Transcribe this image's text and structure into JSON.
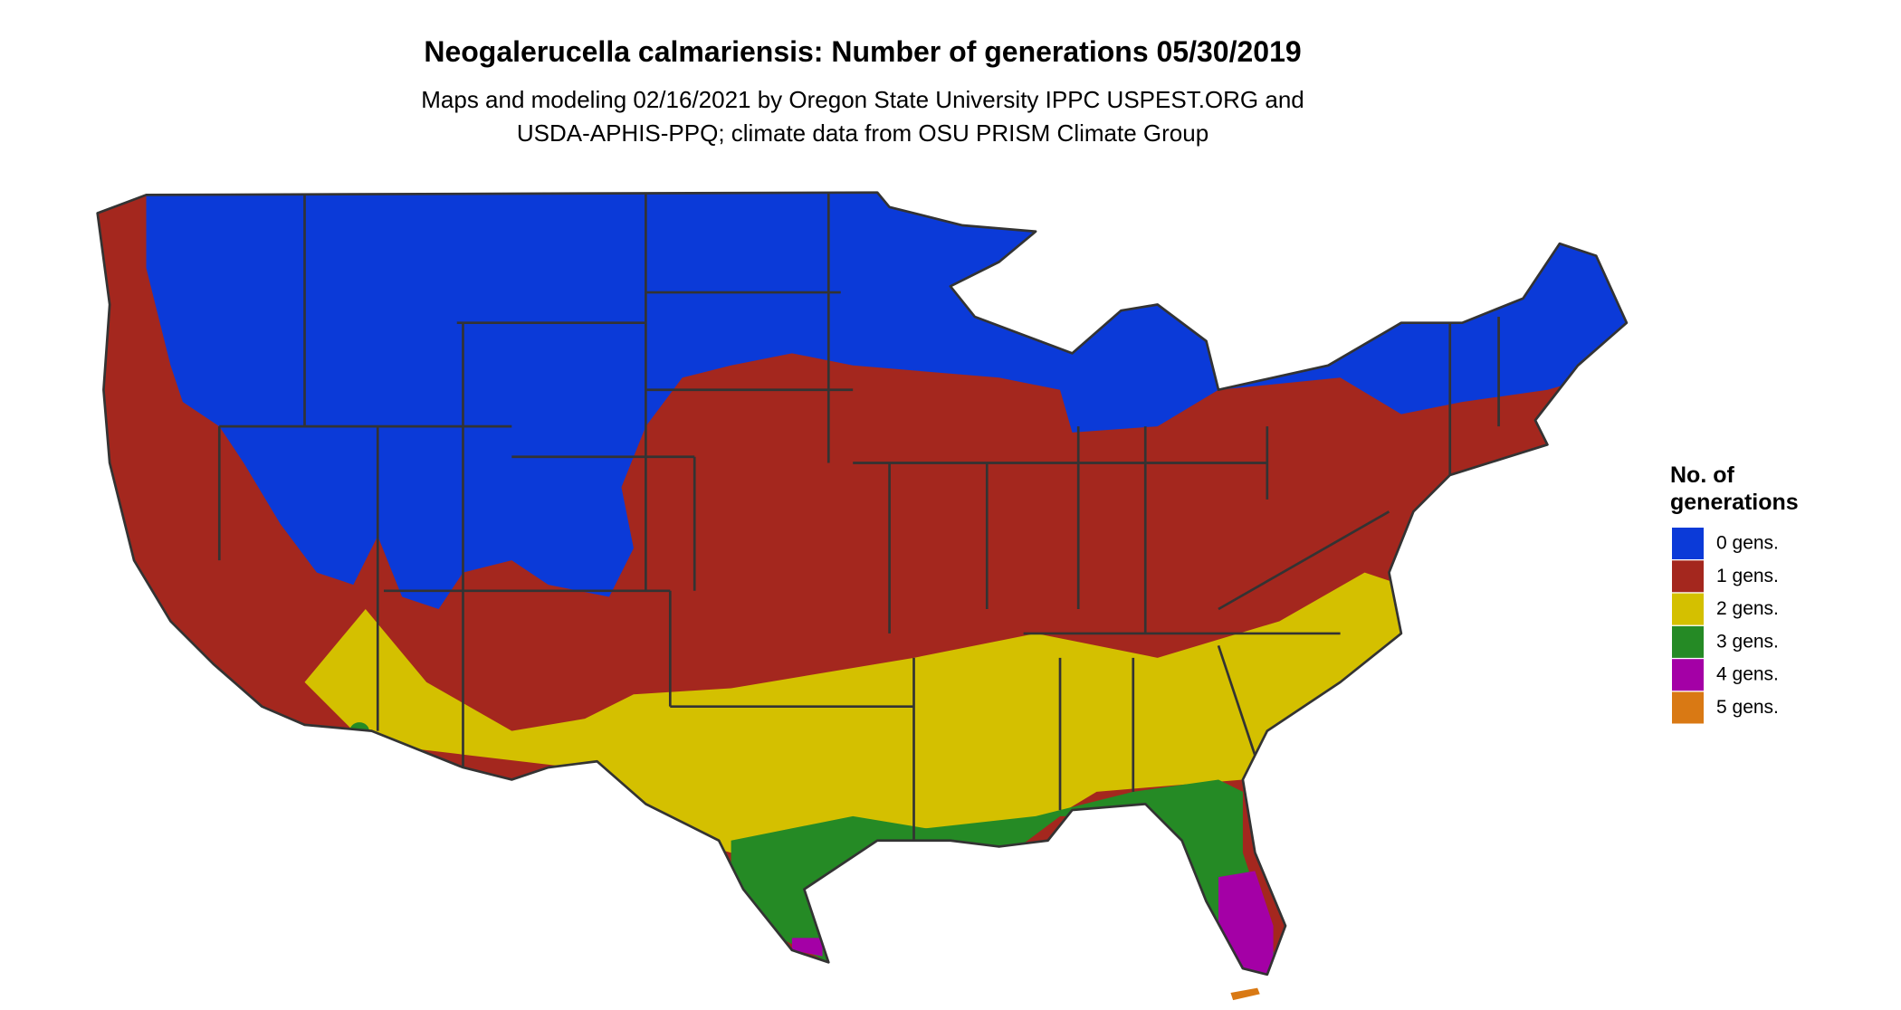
{
  "title": "Neogalerucella calmariensis: Number of generations 05/30/2019",
  "subtitle": [
    "Maps and modeling 02/16/2021 by Oregon State University IPPC USPEST.ORG and",
    "USDA-APHIS-PPQ; climate data from OSU PRISM Climate Group"
  ],
  "legend": {
    "title": [
      "No. of",
      "generations"
    ],
    "entries": [
      {
        "label": "0 gens.",
        "color": "#0b3ad8"
      },
      {
        "label": "1 gens.",
        "color": "#a4271e"
      },
      {
        "label": "2 gens.",
        "color": "#d4c000"
      },
      {
        "label": "3 gens.",
        "color": "#258a25"
      },
      {
        "label": "4 gens.",
        "color": "#a400a6"
      },
      {
        "label": "5 gens.",
        "color": "#d97914"
      }
    ]
  }
}
